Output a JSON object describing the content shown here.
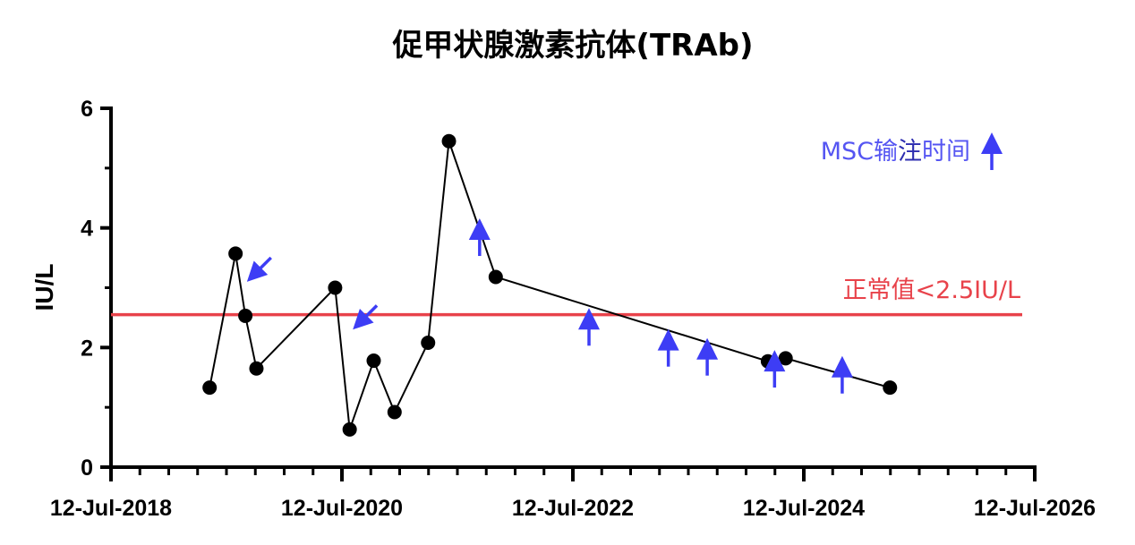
{
  "chart_data": {
    "type": "line",
    "title": "促甲状腺激素抗体(TRAb)",
    "xlabel": "",
    "ylabel": "IU/L",
    "ylim": [
      0,
      6
    ],
    "yticks": [
      "0",
      "2",
      "4",
      "6"
    ],
    "xlim": [
      "2018-07-12",
      "2026-07-12"
    ],
    "xticks": [
      "12-Jul-2018",
      "12-Jul-2020",
      "12-Jul-2022",
      "12-Jul-2024",
      "12-Jul-2026"
    ],
    "grid": false,
    "series": [
      {
        "color": "#000000",
        "points": [
          {
            "x": "2019-05-20",
            "y": 1.33
          },
          {
            "x": "2019-08-10",
            "y": 3.57
          },
          {
            "x": "2019-09-10",
            "y": 2.53
          },
          {
            "x": "2019-10-15",
            "y": 1.65
          },
          {
            "x": "2020-06-20",
            "y": 3.0
          },
          {
            "x": "2020-08-05",
            "y": 0.63
          },
          {
            "x": "2020-10-20",
            "y": 1.78
          },
          {
            "x": "2020-12-25",
            "y": 0.92
          },
          {
            "x": "2021-04-10",
            "y": 2.08
          },
          {
            "x": "2021-06-15",
            "y": 5.45
          },
          {
            "x": "2021-11-10",
            "y": 3.18
          },
          {
            "x": "2024-03-20",
            "y": 1.77
          },
          {
            "x": "2024-05-15",
            "y": 1.82
          },
          {
            "x": "2025-04-10",
            "y": 1.33
          }
        ]
      }
    ],
    "reference_line": {
      "y": 2.55,
      "label": "正常值<2.5IU/L",
      "color": "#e8424a"
    },
    "msc_arrows": {
      "color": "#3d3df5",
      "up": [
        {
          "x": "2021-09-20",
          "y": 3.8
        },
        {
          "x": "2022-09-01",
          "y": 2.3
        },
        {
          "x": "2023-05-10",
          "y": 1.95
        },
        {
          "x": "2023-09-10",
          "y": 1.8
        },
        {
          "x": "2024-04-10",
          "y": 1.6
        },
        {
          "x": "2024-11-10",
          "y": 1.5
        }
      ],
      "diagonal": [
        {
          "x": "2019-09-15",
          "y": 3.1
        },
        {
          "x": "2020-08-15",
          "y": 2.3
        }
      ]
    },
    "legend": {
      "text_a": "MSC输",
      "text_b": "注",
      "text_c": "时间",
      "position": "top-right"
    }
  }
}
